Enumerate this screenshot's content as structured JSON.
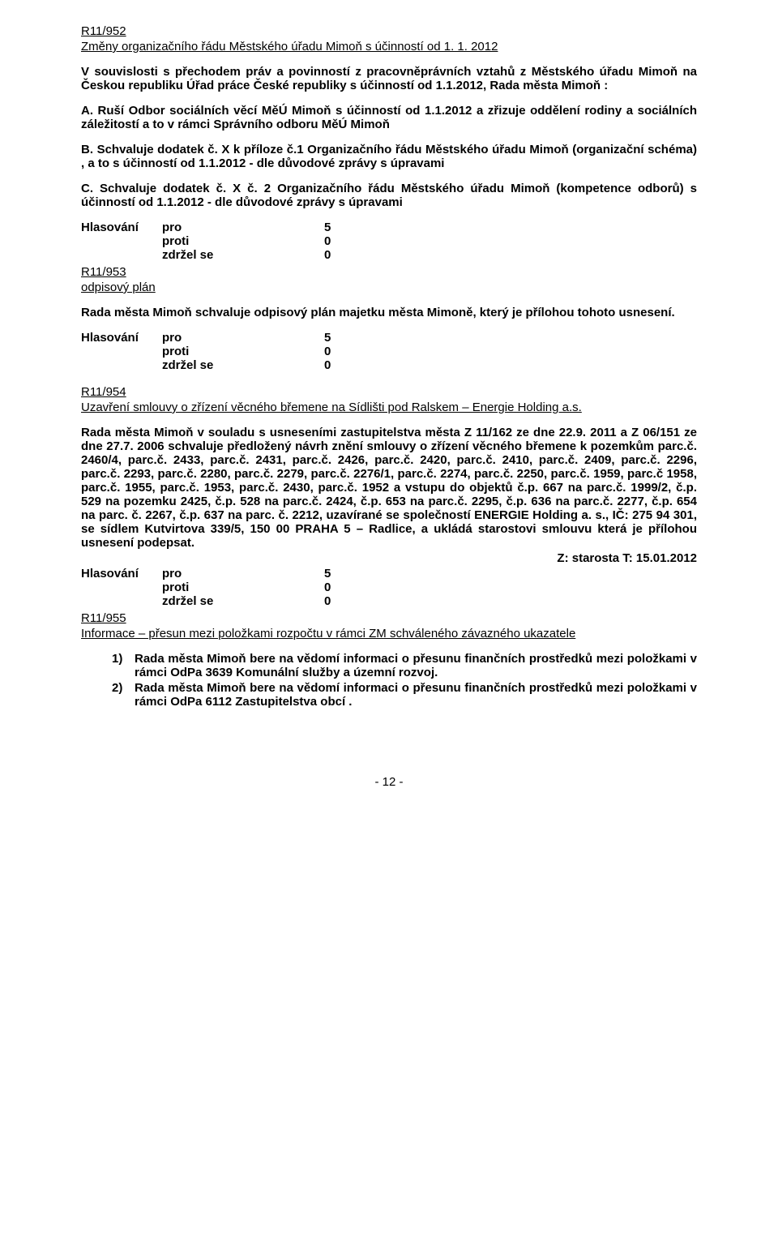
{
  "r952": {
    "id": "R11/952",
    "title": "Změny organizačního řádu Městského úřadu Mimoň s účinností od 1. 1. 2012",
    "intro": "V souvislosti s přechodem práv a povinností z pracovněprávních vztahů z Městského úřadu Mimoň na Českou republiku Úřad práce České republiky s účinností od 1.1.2012, Rada města Mimoň :",
    "itemA": "A. Ruší Odbor sociálních věcí MěÚ Mimoň s účinností od 1.1.2012 a zřizuje oddělení rodiny a sociálních záležitostí a to v rámci Správního odboru MěÚ Mimoň",
    "itemB": "B. Schvaluje dodatek č. X k příloze č.1 Organizačního řádu Městského úřadu Mimoň (organizační schéma) , a to s účinností od 1.1.2012 - dle důvodové zprávy s úpravami",
    "itemC": "C. Schvaluje dodatek č. X č. 2 Organizačního řádu Městského úřadu Mimoň (kompetence odborů) s účinností od 1.1.2012 - dle důvodové zprávy s úpravami"
  },
  "r953": {
    "id": "R11/953",
    "title": "odpisový plán",
    "text": "Rada města Mimoň schvaluje odpisový plán majetku města Mimoně, který je přílohou tohoto usnesení."
  },
  "r954": {
    "id": "R11/954",
    "title": "Uzavření smlouvy o zřízení věcného břemene na Sídlišti pod Ralskem – Energie Holding a.s.",
    "text": "Rada města Mimoň v souladu s usneseními zastupitelstva města Z 11/162 ze dne 22.9. 2011 a Z 06/151 ze dne 27.7. 2006 schvaluje předložený návrh znění smlouvy o zřízení věcného břemene k pozemkům parc.č. 2460/4, parc.č. 2433, parc.č. 2431, parc.č. 2426, parc.č. 2420, parc.č. 2410, parc.č. 2409, parc.č. 2296, parc.č. 2293, parc.č. 2280, parc.č. 2279, parc.č. 2276/1, parc.č. 2274, parc.č. 2250, parc.č. 1959, parc.č 1958, parc.č. 1955, parc.č. 1953, parc.č. 2430, parc.č. 1952 a vstupu do objektů č.p. 667 na parc.č. 1999/2, č.p. 529 na pozemku 2425, č.p. 528 na parc.č. 2424, č.p. 653 na parc.č. 2295, č.p. 636 na parc.č. 2277, č.p. 654 na parc. č. 2267, č.p. 637 na parc. č. 2212, uzavírané se společností ENERGIE Holding a. s., IČ: 275 94 301, se sídlem Kutvirtova 339/5, 150 00 PRAHA 5 – Radlice, a ukládá starostovi smlouvu která je přílohou usnesení podepsat.",
    "note": "Z: starosta  T: 15.01.2012"
  },
  "r955": {
    "id": "R11/955",
    "title": "Informace – přesun mezi položkami rozpočtu v rámci ZM schváleného závazného ukazatele",
    "item1": "Rada města Mimoň bere na vědomí informaci o přesunu finančních prostředků mezi položkami v rámci OdPa 3639 Komunální služby a územní rozvoj.",
    "item2": "Rada města Mimoň bere na vědomí informaci o přesunu finančních prostředků mezi položkami v rámci OdPa 6112 Zastupitelstva obcí ."
  },
  "vote": {
    "label": "Hlasování",
    "pro": "pro",
    "proti": "proti",
    "zdrzel": "zdržel se",
    "pro_n": "5",
    "proti_n": "0",
    "zdrzel_n": "0"
  },
  "list": {
    "b1": "1)",
    "b2": "2)"
  },
  "pagenum": "- 12 -"
}
